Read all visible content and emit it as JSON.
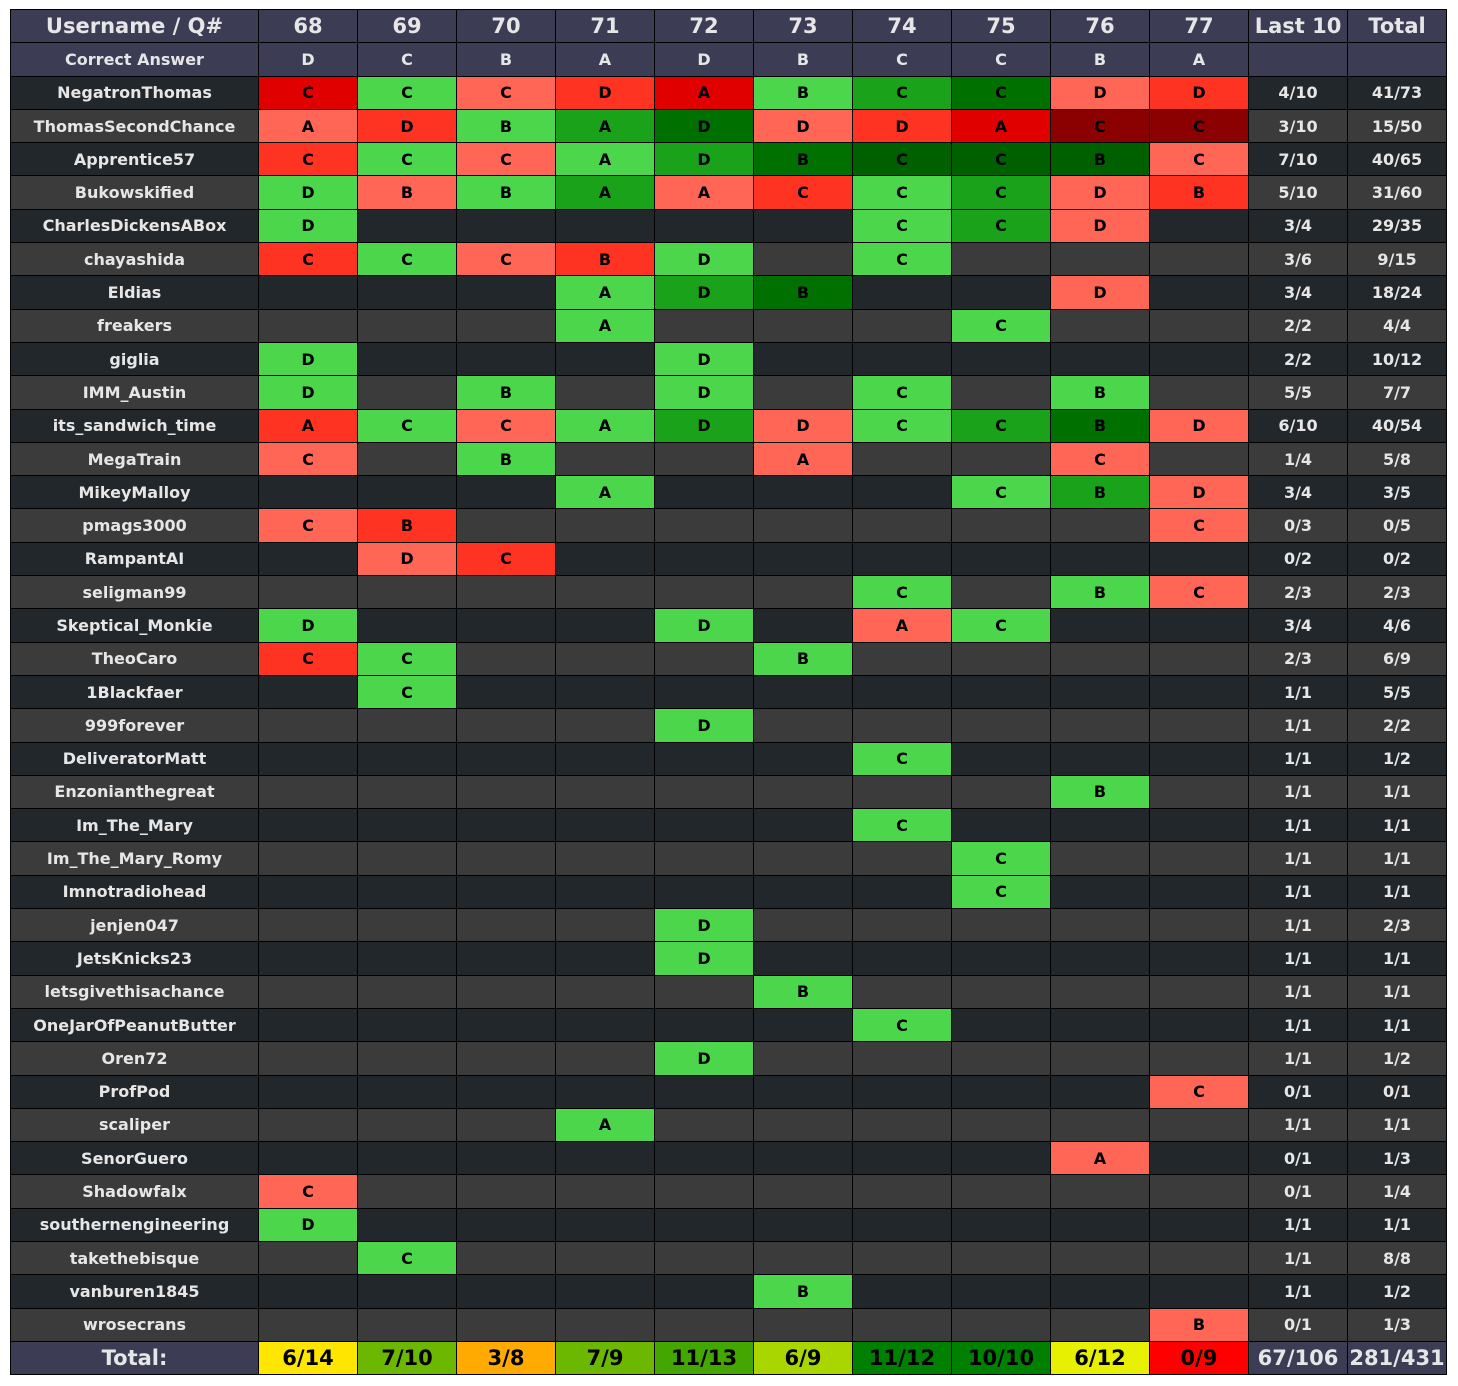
{
  "table": {
    "header": {
      "user_label": "Username / Q#",
      "questions": [
        "68",
        "69",
        "70",
        "71",
        "72",
        "73",
        "74",
        "75",
        "76",
        "77"
      ],
      "last10_label": "Last 10",
      "total_label": "Total"
    },
    "correct_row": {
      "label": "Correct Answer",
      "answers": [
        "D",
        "C",
        "B",
        "A",
        "D",
        "B",
        "C",
        "C",
        "B",
        "A"
      ]
    },
    "rows": [
      {
        "user": "NegatronThomas",
        "answers": [
          "C",
          "C",
          "C",
          "D",
          "A",
          "B",
          "C",
          "C",
          "D",
          "D"
        ],
        "colors": [
          "#e10000",
          "#4cd64c",
          "#ff6655",
          "#ff3322",
          "#e10000",
          "#4cd64c",
          "#1aa31a",
          "#007000",
          "#ff6655",
          "#ff3322"
        ],
        "last10": "4/10",
        "total": "41/73"
      },
      {
        "user": "ThomasSecondChance",
        "answers": [
          "A",
          "D",
          "B",
          "A",
          "D",
          "D",
          "D",
          "A",
          "C",
          "C"
        ],
        "colors": [
          "#ff6655",
          "#ff3322",
          "#4cd64c",
          "#1aa31a",
          "#007000",
          "#ff6655",
          "#ff3322",
          "#e10000",
          "#8b0000",
          "#8b0000"
        ],
        "last10": "3/10",
        "total": "15/50"
      },
      {
        "user": "Apprentice57",
        "answers": [
          "C",
          "C",
          "C",
          "A",
          "D",
          "B",
          "C",
          "C",
          "B",
          "C"
        ],
        "colors": [
          "#ff3322",
          "#4cd64c",
          "#ff6655",
          "#4cd64c",
          "#1aa31a",
          "#007000",
          "#006000",
          "#006000",
          "#006000",
          "#ff6655"
        ],
        "last10": "7/10",
        "total": "40/65"
      },
      {
        "user": "Bukowskified",
        "answers": [
          "D",
          "B",
          "B",
          "A",
          "A",
          "C",
          "C",
          "C",
          "D",
          "B"
        ],
        "colors": [
          "#4cd64c",
          "#ff6655",
          "#4cd64c",
          "#1aa31a",
          "#ff6655",
          "#ff3322",
          "#4cd64c",
          "#1aa31a",
          "#ff6655",
          "#ff3322"
        ],
        "last10": "5/10",
        "total": "31/60"
      },
      {
        "user": "CharlesDickensABox",
        "answers": [
          "D",
          "",
          "",
          "",
          "",
          "",
          "C",
          "C",
          "D",
          ""
        ],
        "colors": [
          "#4cd64c",
          "",
          "",
          "",
          "",
          "",
          "#4cd64c",
          "#1aa31a",
          "#ff6655",
          ""
        ],
        "last10": "3/4",
        "total": "29/35"
      },
      {
        "user": "chayashida",
        "answers": [
          "C",
          "C",
          "C",
          "B",
          "D",
          "",
          "C",
          "",
          "",
          ""
        ],
        "colors": [
          "#ff3322",
          "#4cd64c",
          "#ff6655",
          "#ff3322",
          "#4cd64c",
          "",
          "#4cd64c",
          "",
          "",
          ""
        ],
        "last10": "3/6",
        "total": "9/15"
      },
      {
        "user": "Eldias",
        "answers": [
          "",
          "",
          "",
          "A",
          "D",
          "B",
          "",
          "",
          "D",
          ""
        ],
        "colors": [
          "",
          "",
          "",
          "#4cd64c",
          "#1aa31a",
          "#007000",
          "",
          "",
          "#ff6655",
          ""
        ],
        "last10": "3/4",
        "total": "18/24"
      },
      {
        "user": "freakers",
        "answers": [
          "",
          "",
          "",
          "A",
          "",
          "",
          "",
          "C",
          "",
          ""
        ],
        "colors": [
          "",
          "",
          "",
          "#4cd64c",
          "",
          "",
          "",
          "#4cd64c",
          "",
          ""
        ],
        "last10": "2/2",
        "total": "4/4"
      },
      {
        "user": "giglia",
        "answers": [
          "D",
          "",
          "",
          "",
          "D",
          "",
          "",
          "",
          "",
          ""
        ],
        "colors": [
          "#4cd64c",
          "",
          "",
          "",
          "#4cd64c",
          "",
          "",
          "",
          "",
          ""
        ],
        "last10": "2/2",
        "total": "10/12"
      },
      {
        "user": "IMM_Austin",
        "answers": [
          "D",
          "",
          "B",
          "",
          "D",
          "",
          "C",
          "",
          "B",
          ""
        ],
        "colors": [
          "#4cd64c",
          "",
          "#4cd64c",
          "",
          "#4cd64c",
          "",
          "#4cd64c",
          "",
          "#4cd64c",
          ""
        ],
        "last10": "5/5",
        "total": "7/7"
      },
      {
        "user": "its_sandwich_time",
        "answers": [
          "A",
          "C",
          "C",
          "A",
          "D",
          "D",
          "C",
          "C",
          "B",
          "D"
        ],
        "colors": [
          "#ff3322",
          "#4cd64c",
          "#ff6655",
          "#4cd64c",
          "#1aa31a",
          "#ff6655",
          "#4cd64c",
          "#1aa31a",
          "#007000",
          "#ff6655"
        ],
        "last10": "6/10",
        "total": "40/54"
      },
      {
        "user": "MegaTrain",
        "answers": [
          "C",
          "",
          "B",
          "",
          "",
          "A",
          "",
          "",
          "C",
          ""
        ],
        "colors": [
          "#ff6655",
          "",
          "#4cd64c",
          "",
          "",
          "#ff6655",
          "",
          "",
          "#ff6655",
          ""
        ],
        "last10": "1/4",
        "total": "5/8"
      },
      {
        "user": "MikeyMalloy",
        "answers": [
          "",
          "",
          "",
          "A",
          "",
          "",
          "",
          "C",
          "B",
          "D"
        ],
        "colors": [
          "",
          "",
          "",
          "#4cd64c",
          "",
          "",
          "",
          "#4cd64c",
          "#1aa31a",
          "#ff6655"
        ],
        "last10": "3/4",
        "total": "3/5"
      },
      {
        "user": "pmags3000",
        "answers": [
          "C",
          "B",
          "",
          "",
          "",
          "",
          "",
          "",
          "",
          "C"
        ],
        "colors": [
          "#ff6655",
          "#ff3322",
          "",
          "",
          "",
          "",
          "",
          "",
          "",
          "#ff6655"
        ],
        "last10": "0/3",
        "total": "0/5"
      },
      {
        "user": "RampantAI",
        "answers": [
          "",
          "D",
          "C",
          "",
          "",
          "",
          "",
          "",
          "",
          ""
        ],
        "colors": [
          "",
          "#ff6655",
          "#ff3322",
          "",
          "",
          "",
          "",
          "",
          "",
          ""
        ],
        "last10": "0/2",
        "total": "0/2"
      },
      {
        "user": "seligman99",
        "answers": [
          "",
          "",
          "",
          "",
          "",
          "",
          "C",
          "",
          "B",
          "C"
        ],
        "colors": [
          "",
          "",
          "",
          "",
          "",
          "",
          "#4cd64c",
          "",
          "#4cd64c",
          "#ff6655"
        ],
        "last10": "2/3",
        "total": "2/3"
      },
      {
        "user": "Skeptical_Monkie",
        "answers": [
          "D",
          "",
          "",
          "",
          "D",
          "",
          "A",
          "C",
          "",
          ""
        ],
        "colors": [
          "#4cd64c",
          "",
          "",
          "",
          "#4cd64c",
          "",
          "#ff6655",
          "#4cd64c",
          "",
          ""
        ],
        "last10": "3/4",
        "total": "4/6"
      },
      {
        "user": "TheoCaro",
        "answers": [
          "C",
          "C",
          "",
          "",
          "",
          "B",
          "",
          "",
          "",
          ""
        ],
        "colors": [
          "#ff3322",
          "#4cd64c",
          "",
          "",
          "",
          "#4cd64c",
          "",
          "",
          "",
          ""
        ],
        "last10": "2/3",
        "total": "6/9"
      },
      {
        "user": "1Blackfaer",
        "answers": [
          "",
          "C",
          "",
          "",
          "",
          "",
          "",
          "",
          "",
          ""
        ],
        "colors": [
          "",
          "#4cd64c",
          "",
          "",
          "",
          "",
          "",
          "",
          "",
          ""
        ],
        "last10": "1/1",
        "total": "5/5"
      },
      {
        "user": "999forever",
        "answers": [
          "",
          "",
          "",
          "",
          "D",
          "",
          "",
          "",
          "",
          ""
        ],
        "colors": [
          "",
          "",
          "",
          "",
          "#4cd64c",
          "",
          "",
          "",
          "",
          ""
        ],
        "last10": "1/1",
        "total": "2/2"
      },
      {
        "user": "DeliveratorMatt",
        "answers": [
          "",
          "",
          "",
          "",
          "",
          "",
          "C",
          "",
          "",
          ""
        ],
        "colors": [
          "",
          "",
          "",
          "",
          "",
          "",
          "#4cd64c",
          "",
          "",
          ""
        ],
        "last10": "1/1",
        "total": "1/2"
      },
      {
        "user": "Enzonianthegreat",
        "answers": [
          "",
          "",
          "",
          "",
          "",
          "",
          "",
          "",
          "B",
          ""
        ],
        "colors": [
          "",
          "",
          "",
          "",
          "",
          "",
          "",
          "",
          "#4cd64c",
          ""
        ],
        "last10": "1/1",
        "total": "1/1"
      },
      {
        "user": "Im_The_Mary",
        "answers": [
          "",
          "",
          "",
          "",
          "",
          "",
          "C",
          "",
          "",
          ""
        ],
        "colors": [
          "",
          "",
          "",
          "",
          "",
          "",
          "#4cd64c",
          "",
          "",
          ""
        ],
        "last10": "1/1",
        "total": "1/1"
      },
      {
        "user": "Im_The_Mary_Romy",
        "answers": [
          "",
          "",
          "",
          "",
          "",
          "",
          "",
          "C",
          "",
          ""
        ],
        "colors": [
          "",
          "",
          "",
          "",
          "",
          "",
          "",
          "#4cd64c",
          "",
          ""
        ],
        "last10": "1/1",
        "total": "1/1"
      },
      {
        "user": "Imnotradiohead",
        "answers": [
          "",
          "",
          "",
          "",
          "",
          "",
          "",
          "C",
          "",
          ""
        ],
        "colors": [
          "",
          "",
          "",
          "",
          "",
          "",
          "",
          "#4cd64c",
          "",
          ""
        ],
        "last10": "1/1",
        "total": "1/1"
      },
      {
        "user": "jenjen047",
        "answers": [
          "",
          "",
          "",
          "",
          "D",
          "",
          "",
          "",
          "",
          ""
        ],
        "colors": [
          "",
          "",
          "",
          "",
          "#4cd64c",
          "",
          "",
          "",
          "",
          ""
        ],
        "last10": "1/1",
        "total": "2/3"
      },
      {
        "user": "JetsKnicks23",
        "answers": [
          "",
          "",
          "",
          "",
          "D",
          "",
          "",
          "",
          "",
          ""
        ],
        "colors": [
          "",
          "",
          "",
          "",
          "#4cd64c",
          "",
          "",
          "",
          "",
          ""
        ],
        "last10": "1/1",
        "total": "1/1"
      },
      {
        "user": "letsgivethisachance",
        "answers": [
          "",
          "",
          "",
          "",
          "",
          "B",
          "",
          "",
          "",
          ""
        ],
        "colors": [
          "",
          "",
          "",
          "",
          "",
          "#4cd64c",
          "",
          "",
          "",
          ""
        ],
        "last10": "1/1",
        "total": "1/1"
      },
      {
        "user": "OneJarOfPeanutButter",
        "answers": [
          "",
          "",
          "",
          "",
          "",
          "",
          "C",
          "",
          "",
          ""
        ],
        "colors": [
          "",
          "",
          "",
          "",
          "",
          "",
          "#4cd64c",
          "",
          "",
          ""
        ],
        "last10": "1/1",
        "total": "1/1"
      },
      {
        "user": "Oren72",
        "answers": [
          "",
          "",
          "",
          "",
          "D",
          "",
          "",
          "",
          "",
          ""
        ],
        "colors": [
          "",
          "",
          "",
          "",
          "#4cd64c",
          "",
          "",
          "",
          "",
          ""
        ],
        "last10": "1/1",
        "total": "1/2"
      },
      {
        "user": "ProfPod",
        "answers": [
          "",
          "",
          "",
          "",
          "",
          "",
          "",
          "",
          "",
          "C"
        ],
        "colors": [
          "",
          "",
          "",
          "",
          "",
          "",
          "",
          "",
          "",
          "#ff6655"
        ],
        "last10": "0/1",
        "total": "0/1"
      },
      {
        "user": "scaliper",
        "answers": [
          "",
          "",
          "",
          "A",
          "",
          "",
          "",
          "",
          "",
          ""
        ],
        "colors": [
          "",
          "",
          "",
          "#4cd64c",
          "",
          "",
          "",
          "",
          "",
          ""
        ],
        "last10": "1/1",
        "total": "1/1"
      },
      {
        "user": "SenorGuero",
        "answers": [
          "",
          "",
          "",
          "",
          "",
          "",
          "",
          "",
          "A",
          ""
        ],
        "colors": [
          "",
          "",
          "",
          "",
          "",
          "",
          "",
          "",
          "#ff6655",
          ""
        ],
        "last10": "0/1",
        "total": "1/3"
      },
      {
        "user": "Shadowfalx",
        "answers": [
          "C",
          "",
          "",
          "",
          "",
          "",
          "",
          "",
          "",
          ""
        ],
        "colors": [
          "#ff6655",
          "",
          "",
          "",
          "",
          "",
          "",
          "",
          "",
          ""
        ],
        "last10": "0/1",
        "total": "1/4"
      },
      {
        "user": "southernengineering",
        "answers": [
          "D",
          "",
          "",
          "",
          "",
          "",
          "",
          "",
          "",
          ""
        ],
        "colors": [
          "#4cd64c",
          "",
          "",
          "",
          "",
          "",
          "",
          "",
          "",
          ""
        ],
        "last10": "1/1",
        "total": "1/1"
      },
      {
        "user": "takethebisque",
        "answers": [
          "",
          "C",
          "",
          "",
          "",
          "",
          "",
          "",
          "",
          ""
        ],
        "colors": [
          "",
          "#4cd64c",
          "",
          "",
          "",
          "",
          "",
          "",
          "",
          ""
        ],
        "last10": "1/1",
        "total": "8/8"
      },
      {
        "user": "vanburen1845",
        "answers": [
          "",
          "",
          "",
          "",
          "",
          "B",
          "",
          "",
          "",
          ""
        ],
        "colors": [
          "",
          "",
          "",
          "",
          "",
          "#4cd64c",
          "",
          "",
          "",
          ""
        ],
        "last10": "1/1",
        "total": "1/2"
      },
      {
        "user": "wrosecrans",
        "answers": [
          "",
          "",
          "",
          "",
          "",
          "",
          "",
          "",
          "",
          "B"
        ],
        "colors": [
          "",
          "",
          "",
          "",
          "",
          "",
          "",
          "",
          "",
          "#ff6655"
        ],
        "last10": "0/1",
        "total": "1/3"
      }
    ],
    "footer": {
      "label": "Total:",
      "values": [
        "6/14",
        "7/10",
        "3/8",
        "7/9",
        "11/13",
        "6/9",
        "11/12",
        "10/10",
        "6/12",
        "0/9"
      ],
      "colors": [
        "#ffe600",
        "#6cb800",
        "#ffaa00",
        "#6cb800",
        "#44a600",
        "#aad600",
        "#008000",
        "#008000",
        "#e6f000",
        "#ff0000"
      ],
      "last10": "67/106",
      "total": "281/431"
    }
  }
}
